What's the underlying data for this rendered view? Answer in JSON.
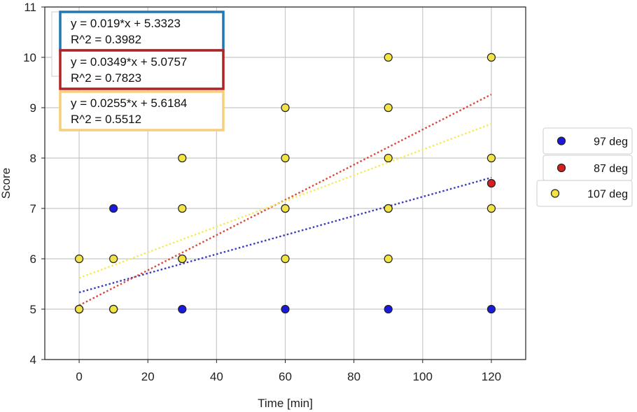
{
  "chart_data": {
    "type": "scatter",
    "xlabel": "Time [min]",
    "ylabel": "Score",
    "xlim": [
      -10,
      130
    ],
    "ylim": [
      4,
      11
    ],
    "xticks": [
      0,
      20,
      40,
      60,
      80,
      100,
      120
    ],
    "yticks": [
      4,
      5,
      6,
      7,
      8,
      9,
      10,
      11
    ],
    "grid": true,
    "legend_placement": "right",
    "series": [
      {
        "name": "97 deg",
        "color": "#1a1adc",
        "points": [
          [
            0,
            5
          ],
          [
            10,
            5
          ],
          [
            10,
            7
          ],
          [
            30,
            5
          ],
          [
            60,
            5
          ],
          [
            90,
            5
          ],
          [
            120,
            5
          ]
        ]
      },
      {
        "name": "87 deg",
        "color": "#d42020",
        "points": [
          [
            0,
            5
          ],
          [
            10,
            5
          ],
          [
            30,
            6
          ],
          [
            60,
            7
          ],
          [
            90,
            7
          ],
          [
            120,
            7.5
          ]
        ]
      },
      {
        "name": "107 deg",
        "color": "#f2e447",
        "points": [
          [
            0,
            5
          ],
          [
            0,
            6
          ],
          [
            10,
            5
          ],
          [
            10,
            6
          ],
          [
            30,
            6
          ],
          [
            30,
            7
          ],
          [
            30,
            8
          ],
          [
            60,
            6
          ],
          [
            60,
            7
          ],
          [
            60,
            8
          ],
          [
            60,
            9
          ],
          [
            90,
            6
          ],
          [
            90,
            7
          ],
          [
            90,
            8
          ],
          [
            90,
            9
          ],
          [
            90,
            10
          ],
          [
            120,
            7
          ],
          [
            120,
            8
          ],
          [
            120,
            10
          ]
        ]
      }
    ],
    "trendlines": [
      {
        "series": "97 deg",
        "slope": 0.019,
        "intercept": 5.3323,
        "x_range": [
          0,
          120
        ],
        "color": "#3b3bbf",
        "equation": "y = 0.019*x + 5.3323",
        "r2": "R^2 = 0.3982",
        "box_color": "#1f77b4"
      },
      {
        "series": "87 deg",
        "slope": 0.0349,
        "intercept": 5.0757,
        "x_range": [
          0,
          120
        ],
        "color": "#d9483b",
        "equation": "y = 0.0349*x + 5.0757",
        "r2": "R^2 = 0.7823",
        "box_color": "#b22222"
      },
      {
        "series": "107 deg",
        "slope": 0.0255,
        "intercept": 5.6184,
        "x_range": [
          0,
          120
        ],
        "color": "#f5ea5a",
        "equation": "y = 0.0255*x + 5.6184",
        "r2": "R^2 = 0.5512",
        "box_color": "#f5cf7a"
      }
    ]
  }
}
